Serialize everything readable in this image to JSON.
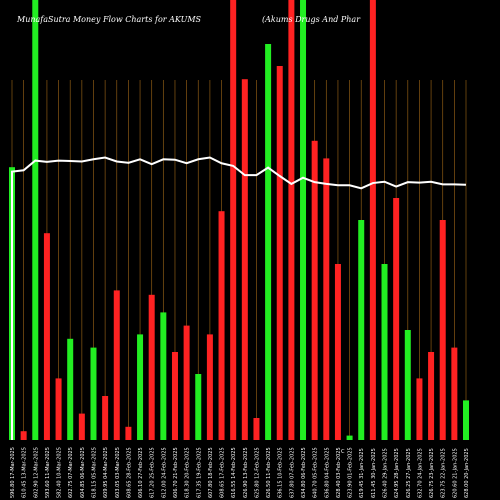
{
  "chart_data": {
    "type": "bar",
    "title_left": "MunafaSutra  Money Flow  Charts for AKUMS",
    "title_right": "(Akums Drugs And Phar",
    "footer_mark": "C",
    "ylim": [
      0,
      100
    ],
    "colors": {
      "up": "#22ee22",
      "down": "#ff2222",
      "line": "#ffffff",
      "grid": "#8b5a14",
      "background": "#000000"
    },
    "categories": [
      "596.80 17-Mar-2025",
      "610.45 13-Mar-2025",
      "602.90 12-Mar-2025",
      "593.60 11-Mar-2025",
      "582.40 10-Mar-2025",
      "602.75 07-Mar-2025",
      "604.85 06-Mar-2025",
      "618.15 05-Mar-2025",
      "609.95 04-Mar-2025",
      "603.05 03-Mar-2025",
      "608.65 28-Feb-2025",
      "606.10 27-Feb-2025",
      "617.20 25-Feb-2025",
      "612.00 24-Feb-2025",
      "606.70 21-Feb-2025",
      "618.30 20-Feb-2025",
      "617.35 19-Feb-2025",
      "607.80 18-Feb-2025",
      "608.65 17-Feb-2025",
      "616.55 14-Feb-2025",
      "626.90 13-Feb-2025",
      "625.80 12-Feb-2025",
      "626.50 11-Feb-2025",
      "636.15 10-Feb-2025",
      "637.80 07-Feb-2025",
      "634.80 06-Feb-2025",
      "640.70 05-Feb-2025",
      "636.80 04-Feb-2025",
      "628.40 03-Feb-2025",
      "623.90 01-Feb-2025",
      "619.45 31-Jan-2025",
      "611.45 30-Jan-2025",
      "626.40 29-Jan-2025",
      "624.95 28-Jan-2025",
      "626.25 27-Jan-2025",
      "632.70 24-Jan-2025",
      "626.75 23-Jan-2025",
      "623.75 22-Jan-2025",
      "620.60 21-Jan-2025",
      "628.00 20-Jan-2025"
    ],
    "values": [
      62,
      2,
      100,
      47,
      14,
      23,
      6,
      21,
      10,
      34,
      3,
      24,
      33,
      29,
      20,
      26,
      15,
      24,
      52,
      100,
      82,
      5,
      90,
      85,
      100,
      100,
      68,
      64,
      40,
      1,
      50,
      100,
      40,
      55,
      25,
      14,
      20,
      50,
      21,
      9
    ],
    "directions": [
      "up",
      "down",
      "up",
      "down",
      "down",
      "up",
      "down",
      "up",
      "down",
      "down",
      "down",
      "up",
      "down",
      "up",
      "down",
      "down",
      "up",
      "down",
      "down",
      "down",
      "down",
      "down",
      "up",
      "down",
      "down",
      "up",
      "down",
      "down",
      "down",
      "up",
      "up",
      "down",
      "up",
      "down",
      "up",
      "down",
      "down",
      "down",
      "down",
      "up"
    ],
    "line": [
      61,
      61.3,
      63.5,
      63.2,
      63.5,
      63.4,
      63.3,
      63.8,
      64.2,
      63.3,
      63,
      63.8,
      62.7,
      63.8,
      63.7,
      62.9,
      63.8,
      64.2,
      62.9,
      62.3,
      60.2,
      60.2,
      61.9,
      60,
      58.2,
      59.6,
      58.6,
      58.2,
      57.9,
      57.9,
      57.2,
      58.4,
      58.7,
      57.6,
      58.6,
      58.5,
      58.7,
      58.1,
      58.1,
      58
    ]
  }
}
